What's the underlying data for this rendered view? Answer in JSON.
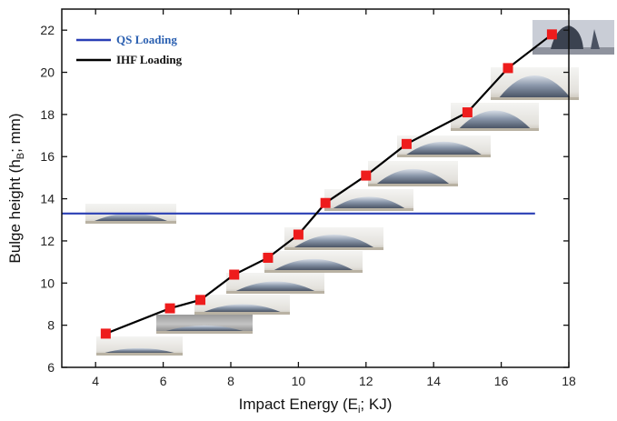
{
  "chart_data": {
    "type": "line",
    "xlabel": "Impact Energy (E",
    "xlabel_sub": "i",
    "xlabel_tail": "; KJ)",
    "ylabel": "Bulge height (h",
    "ylabel_sub": "B",
    "ylabel_tail": "; mm)",
    "xlim": [
      3,
      18
    ],
    "ylim": [
      6,
      23
    ],
    "xticks": [
      4,
      6,
      8,
      10,
      12,
      14,
      16,
      18
    ],
    "yticks": [
      6,
      8,
      10,
      12,
      14,
      16,
      18,
      20,
      22
    ],
    "grid": false,
    "legend_position": "top-left",
    "series": [
      {
        "name": "QS Loading",
        "color": "#2a3fb5",
        "style": "horizontal-line",
        "x": [
          3,
          17
        ],
        "y": [
          13.3,
          13.3
        ]
      },
      {
        "name": "IHF Loading",
        "color": "#000000",
        "marker_color": "#ee1c1c",
        "marker": "square",
        "x": [
          4.3,
          6.2,
          7.1,
          8.1,
          9.1,
          10.0,
          10.8,
          12.0,
          13.2,
          15.0,
          16.2,
          17.5
        ],
        "y": [
          7.6,
          8.8,
          9.2,
          10.4,
          11.2,
          12.3,
          13.8,
          15.1,
          16.6,
          18.1,
          20.2,
          21.8
        ]
      }
    ]
  }
}
